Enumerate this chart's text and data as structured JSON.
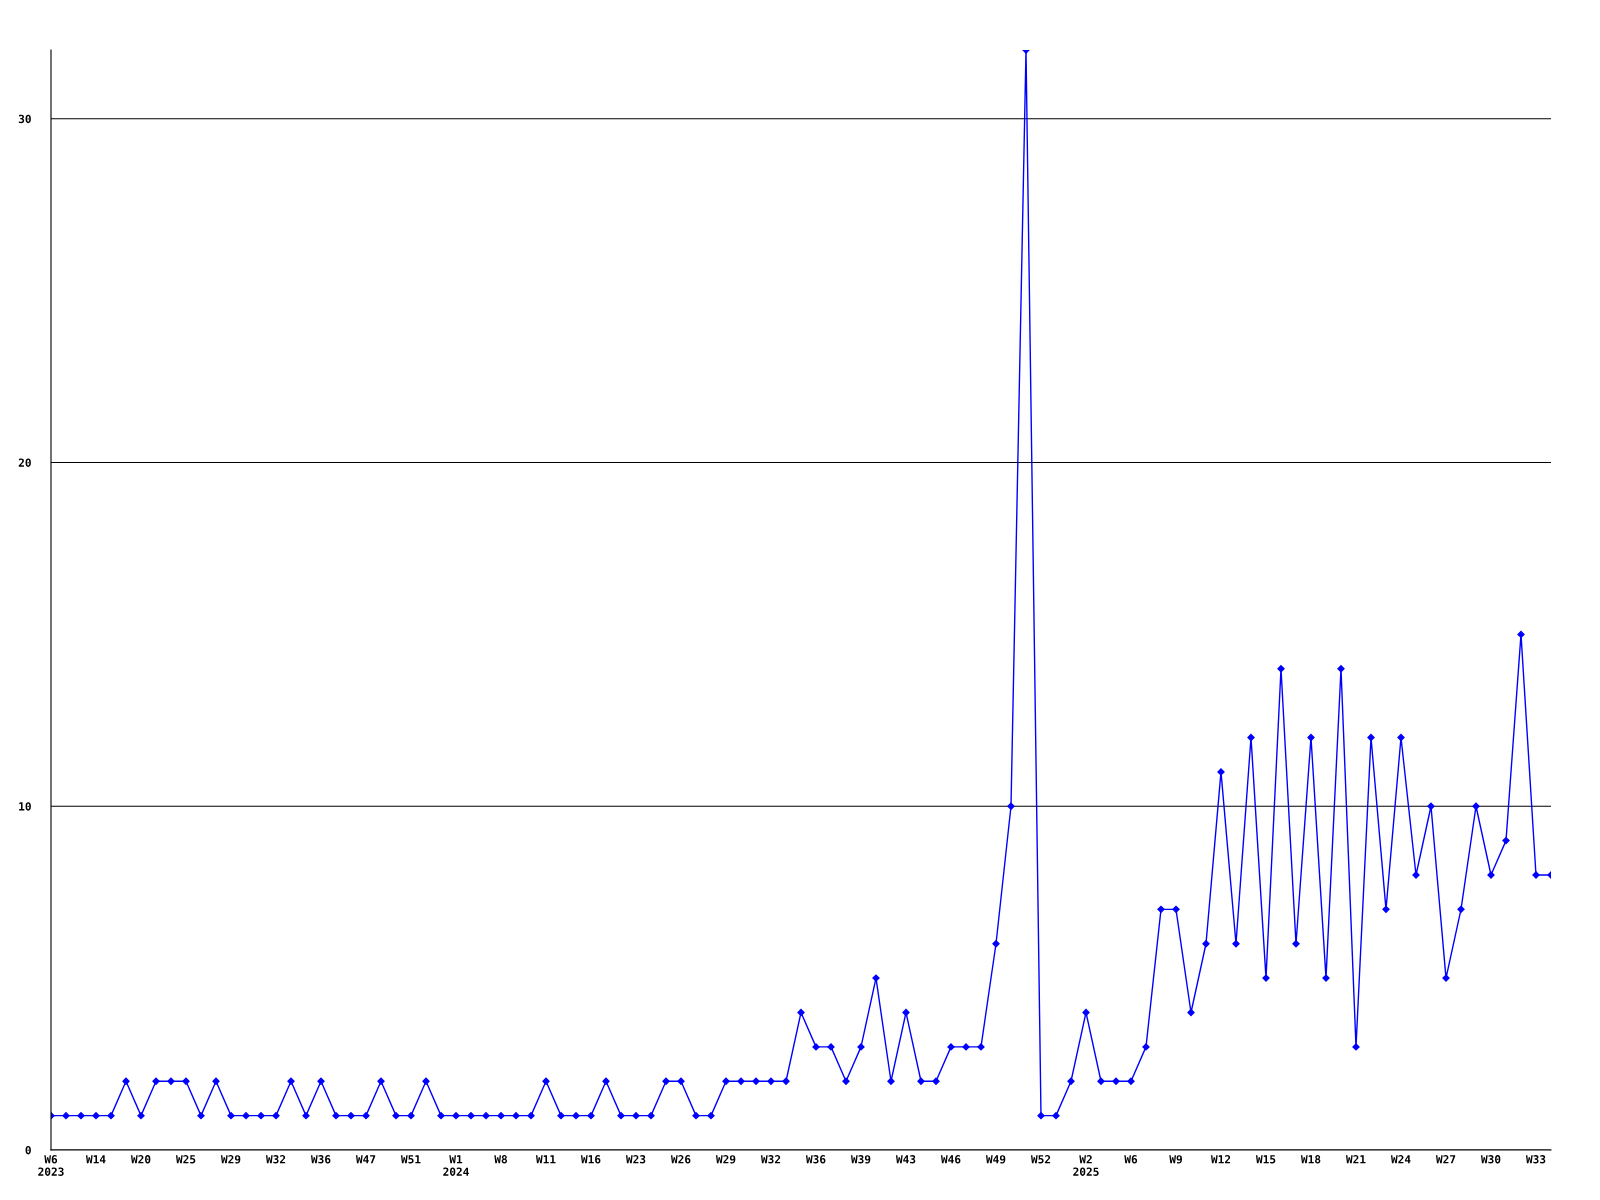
{
  "chart_data": {
    "type": "line",
    "categories": [
      "W6\n2023",
      null,
      null,
      "W14",
      null,
      null,
      "W20",
      null,
      null,
      "W25",
      null,
      null,
      "W29",
      null,
      null,
      "W32",
      null,
      null,
      "W36",
      null,
      null,
      "W47",
      null,
      null,
      "W51",
      null,
      null,
      "W1\n2024",
      null,
      null,
      "W8",
      null,
      null,
      "W11",
      null,
      null,
      "W16",
      null,
      null,
      "W23",
      null,
      null,
      "W26",
      null,
      null,
      "W29",
      null,
      null,
      "W32",
      null,
      null,
      "W36",
      null,
      null,
      "W39",
      null,
      null,
      "W43",
      null,
      null,
      "W46",
      null,
      null,
      "W49",
      null,
      null,
      "W52",
      null,
      null,
      "W2\n2025",
      null,
      null,
      "W6",
      null,
      null,
      "W9",
      null,
      null,
      "W12",
      null,
      null,
      "W15",
      null,
      null,
      "W18",
      null,
      null,
      "W21",
      null,
      null,
      "W24",
      null,
      null,
      "W27",
      null,
      null,
      "W30",
      null,
      null,
      "W33",
      null
    ],
    "series": [
      {
        "color": "#0000ff",
        "values": [
          1,
          1,
          1,
          1,
          1,
          2,
          1,
          2,
          2,
          2,
          1,
          2,
          1,
          1,
          1,
          1,
          2,
          1,
          2,
          1,
          1,
          1,
          2,
          1,
          1,
          2,
          1,
          1,
          1,
          1,
          1,
          1,
          1,
          2,
          1,
          1,
          1,
          2,
          1,
          1,
          1,
          2,
          2,
          1,
          1,
          2,
          2,
          2,
          2,
          2,
          4,
          3,
          3,
          2,
          3,
          5,
          2,
          4,
          2,
          2,
          3,
          3,
          3,
          6,
          10,
          32,
          1,
          1,
          2,
          4,
          2,
          2,
          2,
          3,
          7,
          7,
          4,
          6,
          11,
          6,
          12,
          5,
          14,
          6,
          12,
          5,
          14,
          3,
          12,
          7,
          12,
          8,
          10,
          5,
          7,
          10,
          8,
          9,
          15,
          8,
          8
        ]
      }
    ],
    "ylim": [
      0,
      32
    ],
    "yticks": [
      0,
      10,
      20,
      30
    ],
    "grid": "y",
    "marker": "diamond",
    "line_style": "solid"
  }
}
